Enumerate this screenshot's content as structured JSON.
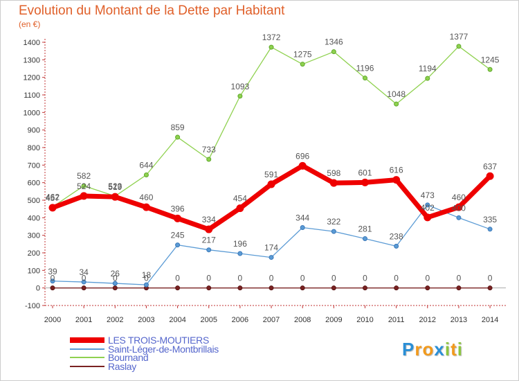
{
  "chart_data": {
    "type": "line",
    "title": "Evolution du Montant de la Dette par Habitant",
    "subtitle": "(en €)",
    "x": [
      "2000",
      "2001",
      "2002",
      "2003",
      "2004",
      "2005",
      "2006",
      "2007",
      "2008",
      "2009",
      "2010",
      "2011",
      "2012",
      "2013",
      "2014"
    ],
    "ylim": [
      -100,
      1400
    ],
    "yticks": [
      -100,
      0,
      100,
      200,
      300,
      400,
      500,
      600,
      700,
      800,
      900,
      1000,
      1100,
      1200,
      1300,
      1400
    ],
    "grid": false,
    "legend_position": "bottom-left",
    "series": [
      {
        "name": "LES TROIS-MOUTIERS",
        "color": "#ee0000",
        "values": [
          457,
          524,
          519,
          460,
          396,
          334,
          454,
          591,
          696,
          598,
          601,
          616,
          402,
          460,
          637
        ]
      },
      {
        "name": "Saint-Léger-de-Montbrillais",
        "color": "#5b9bd5",
        "values": [
          39,
          34,
          26,
          18,
          245,
          217,
          196,
          174,
          344,
          322,
          281,
          238,
          473,
          400,
          335
        ]
      },
      {
        "name": "Bournand",
        "color": "#8fd14f",
        "values": [
          462,
          582,
          523,
          644,
          859,
          733,
          1093,
          1372,
          1275,
          1346,
          1196,
          1048,
          1194,
          1377,
          1245
        ]
      },
      {
        "name": "Raslay",
        "color": "#7a2222",
        "values": [
          0,
          0,
          0,
          0,
          0,
          0,
          0,
          0,
          0,
          0,
          0,
          0,
          0,
          0,
          0
        ]
      }
    ]
  },
  "brand": {
    "letters": [
      "P",
      "r",
      "o",
      "x",
      "i",
      "t",
      "i"
    ],
    "colors": [
      "#2a8fd6",
      "#f29a1c",
      "#f29a1c",
      "#2a8fd6",
      "#8cc63f",
      "#f29a1c",
      "#8cc63f"
    ]
  }
}
